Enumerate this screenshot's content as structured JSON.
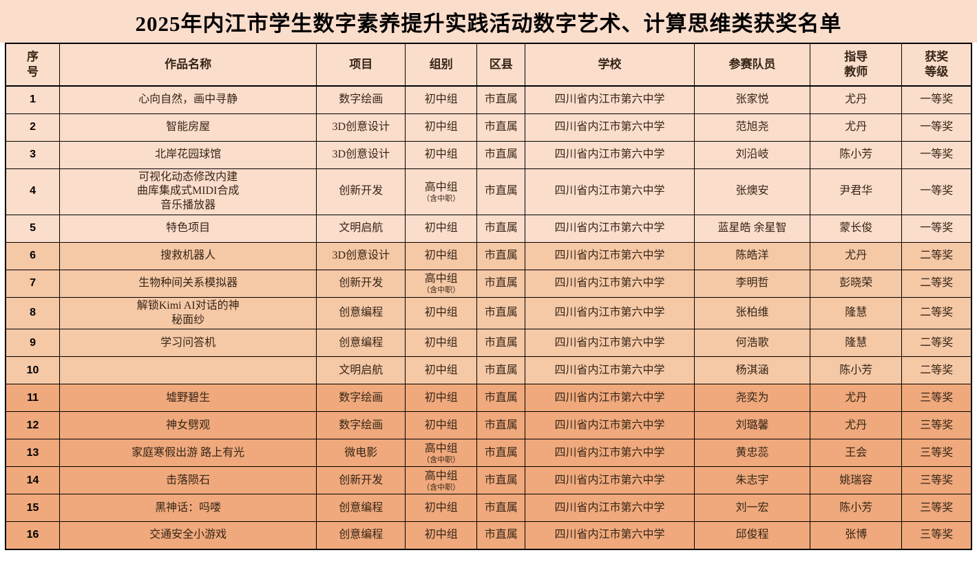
{
  "title": "2025年内江市学生数字素养提升实践活动数字艺术、计算思维类获奖名单",
  "table": {
    "headers": [
      {
        "key": "index",
        "label": "序\n号"
      },
      {
        "key": "work-name",
        "label": "作品名称"
      },
      {
        "key": "project",
        "label": "项目"
      },
      {
        "key": "group",
        "label": "组别"
      },
      {
        "key": "district",
        "label": "区县"
      },
      {
        "key": "school",
        "label": "学校"
      },
      {
        "key": "members",
        "label": "参赛队员"
      },
      {
        "key": "teacher",
        "label": "指导\n教师"
      },
      {
        "key": "award",
        "label": "获奖\n等级"
      }
    ],
    "rows": [
      {
        "no": "1",
        "work": "心向自然，画中寻静",
        "project": "数字绘画",
        "group": "初中组",
        "group_sub": "",
        "district": "市直属",
        "school": "四川省内江市第六中学",
        "members": "张家悦",
        "teacher": "尤丹",
        "award": "一等奖"
      },
      {
        "no": "2",
        "work": "智能房屋",
        "project": "3D创意设计",
        "group": "初中组",
        "group_sub": "",
        "district": "市直属",
        "school": "四川省内江市第六中学",
        "members": "范旭尧",
        "teacher": "尤丹",
        "award": "一等奖"
      },
      {
        "no": "3",
        "work": "北岸花园球馆",
        "project": "3D创意设计",
        "group": "初中组",
        "group_sub": "",
        "district": "市直属",
        "school": "四川省内江市第六中学",
        "members": "刘沿岐",
        "teacher": "陈小芳",
        "award": "一等奖"
      },
      {
        "no": "4",
        "work": "可视化动态修改内建\n曲库集成式MIDI合成\n音乐播放器",
        "project": "创新开发",
        "group": "高中组",
        "group_sub": "（含中职）",
        "district": "市直属",
        "school": "四川省内江市第六中学",
        "members": "张燠安",
        "teacher": "尹君华",
        "award": "一等奖"
      },
      {
        "no": "5",
        "work": "特色项目",
        "project": "文明启航",
        "group": "初中组",
        "group_sub": "",
        "district": "市直属",
        "school": "四川省内江市第六中学",
        "members": "蓝星皓 余星智",
        "teacher": "蒙长俊",
        "award": "一等奖"
      },
      {
        "no": "6",
        "work": "搜救机器人",
        "project": "3D创意设计",
        "group": "初中组",
        "group_sub": "",
        "district": "市直属",
        "school": "四川省内江市第六中学",
        "members": "陈皓洋",
        "teacher": "尤丹",
        "award": "二等奖"
      },
      {
        "no": "7",
        "work": "生物种间关系模拟器",
        "project": "创新开发",
        "group": "高中组",
        "group_sub": "（含中职）",
        "district": "市直属",
        "school": "四川省内江市第六中学",
        "members": "李明哲",
        "teacher": "彭晓荣",
        "award": "二等奖"
      },
      {
        "no": "8",
        "work": "解锁Kimi AI对话的神\n秘面纱",
        "project": "创意编程",
        "group": "初中组",
        "group_sub": "",
        "district": "市直属",
        "school": "四川省内江市第六中学",
        "members": "张柏维",
        "teacher": "隆慧",
        "award": "二等奖"
      },
      {
        "no": "9",
        "work": "学习问答机",
        "project": "创意编程",
        "group": "初中组",
        "group_sub": "",
        "district": "市直属",
        "school": "四川省内江市第六中学",
        "members": "何浩歌",
        "teacher": "隆慧",
        "award": "二等奖"
      },
      {
        "no": "10",
        "work": "",
        "project": "文明启航",
        "group": "初中组",
        "group_sub": "",
        "district": "市直属",
        "school": "四川省内江市第六中学",
        "members": "杨淇涵",
        "teacher": "陈小芳",
        "award": "二等奖"
      },
      {
        "no": "11",
        "work": "墟野碧生",
        "project": "数字绘画",
        "group": "初中组",
        "group_sub": "",
        "district": "市直属",
        "school": "四川省内江市第六中学",
        "members": "尧奕为",
        "teacher": "尤丹",
        "award": "三等奖"
      },
      {
        "no": "12",
        "work": "神女劈观",
        "project": "数字绘画",
        "group": "初中组",
        "group_sub": "",
        "district": "市直属",
        "school": "四川省内江市第六中学",
        "members": "刘璐馨",
        "teacher": "尤丹",
        "award": "三等奖"
      },
      {
        "no": "13",
        "work": "家庭寒假出游 路上有光",
        "project": "微电影",
        "group": "高中组",
        "group_sub": "（含中职）",
        "district": "市直属",
        "school": "四川省内江市第六中学",
        "members": "黄忠蕊",
        "teacher": "王会",
        "award": "三等奖"
      },
      {
        "no": "14",
        "work": "击落陨石",
        "project": "创新开发",
        "group": "高中组",
        "group_sub": "（含中职）",
        "district": "市直属",
        "school": "四川省内江市第六中学",
        "members": "朱志宇",
        "teacher": "姚瑞容",
        "award": "三等奖"
      },
      {
        "no": "15",
        "work": "黑神话：吗喽",
        "project": "创意编程",
        "group": "初中组",
        "group_sub": "",
        "district": "市直属",
        "school": "四川省内江市第六中学",
        "members": "刘一宏",
        "teacher": "陈小芳",
        "award": "三等奖"
      },
      {
        "no": "16",
        "work": "交通安全小游戏",
        "project": "创意编程",
        "group": "初中组",
        "group_sub": "",
        "district": "市直属",
        "school": "四川省内江市第六中学",
        "members": "邱俊程",
        "teacher": "张博",
        "award": "三等奖"
      }
    ],
    "column_widths_percent": [
      5.6,
      26.6,
      9.2,
      7.4,
      5.0,
      17.5,
      12.0,
      9.5,
      7.2
    ]
  },
  "colors": {
    "text": "#362516",
    "border": "#000000",
    "award_bg": {
      "一等奖": "#fbddcc",
      "二等奖": "#f5c8a6",
      "三等奖": "#efa97c"
    }
  }
}
